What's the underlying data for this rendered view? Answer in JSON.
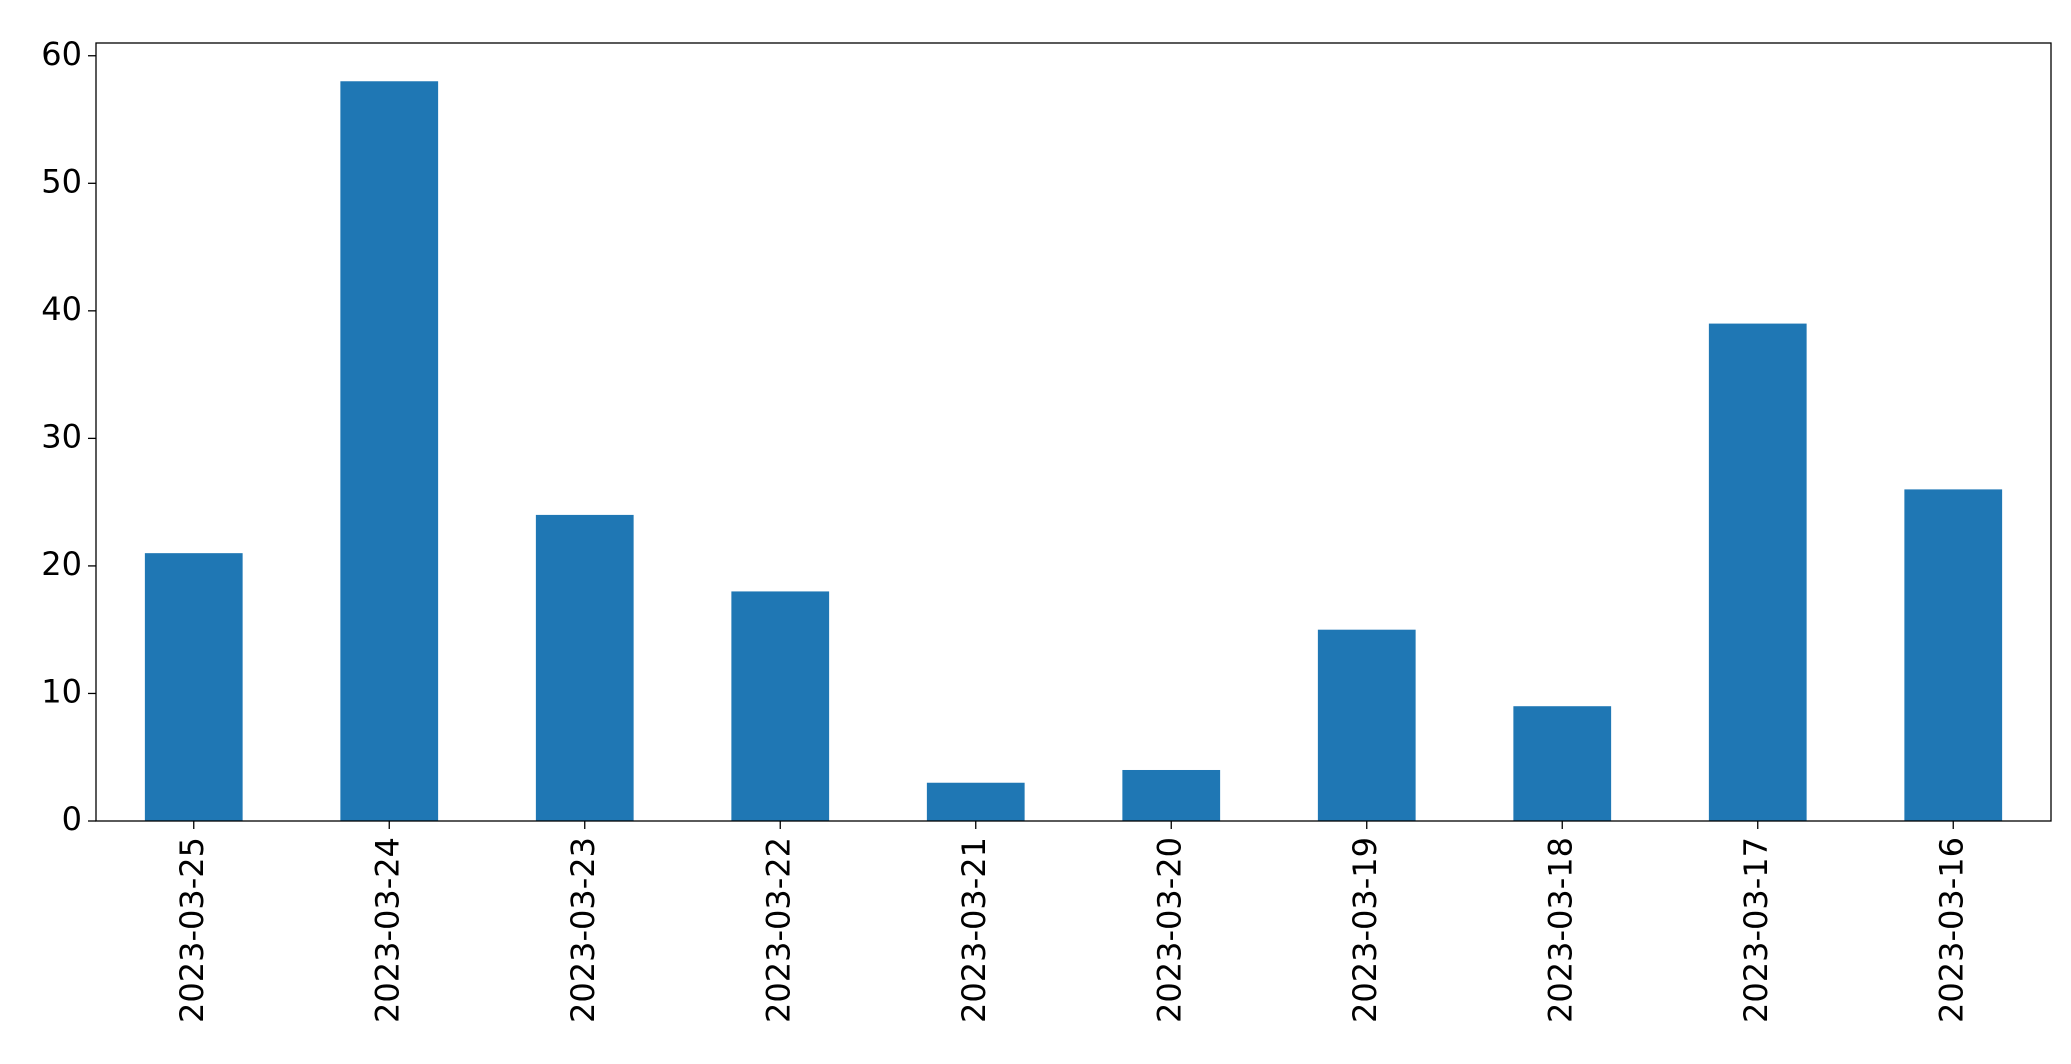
{
  "chart_data": {
    "type": "bar",
    "categories": [
      "2023-03-25",
      "2023-03-24",
      "2023-03-23",
      "2023-03-22",
      "2023-03-21",
      "2023-03-20",
      "2023-03-19",
      "2023-03-18",
      "2023-03-17",
      "2023-03-16"
    ],
    "values": [
      21,
      58,
      24,
      18,
      3,
      4,
      15,
      9,
      39,
      26
    ],
    "color": "#1f77b4",
    "ylim": [
      0,
      61
    ],
    "yticks": [
      0,
      10,
      20,
      30,
      40,
      50,
      60
    ],
    "grid": false
  }
}
